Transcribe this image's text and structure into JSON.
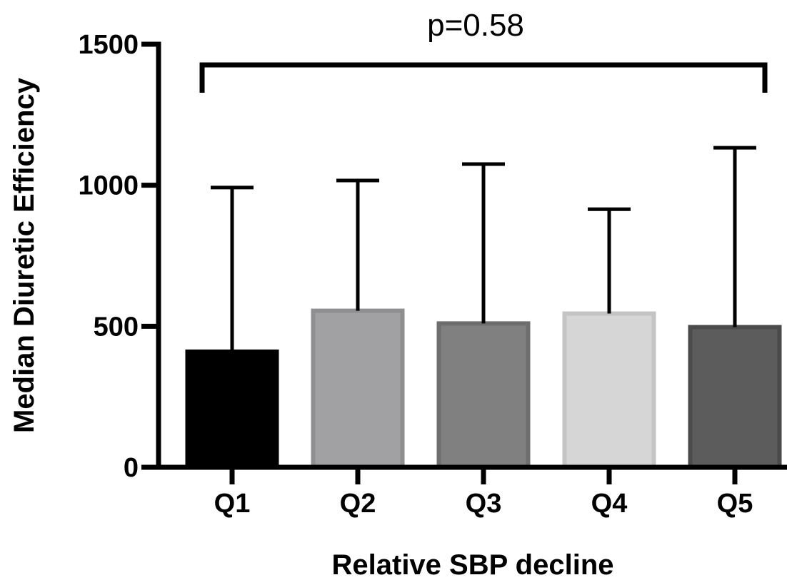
{
  "chart_data": {
    "type": "bar",
    "title": "",
    "xlabel": "Relative SBP decline",
    "ylabel": "Median Diuretic Efficiency",
    "categories": [
      "Q1",
      "Q2",
      "Q3",
      "Q4",
      "Q5"
    ],
    "values": [
      410,
      555,
      510,
      545,
      497
    ],
    "error_upper": [
      992,
      1017,
      1075,
      915,
      1133
    ],
    "ylim": [
      0,
      1500
    ],
    "yticks": [
      0,
      500,
      1000,
      1500
    ],
    "ytick_labels": [
      "0",
      "500",
      "1000",
      "1500"
    ],
    "grid": false,
    "legend": "none",
    "colors": [
      "#000000",
      "#a1a1a4",
      "#808080",
      "#d6d6d6",
      "#5c5c5c"
    ],
    "annotation": {
      "text": "p=0.58",
      "from_category": "Q1",
      "to_category": "Q5"
    }
  }
}
